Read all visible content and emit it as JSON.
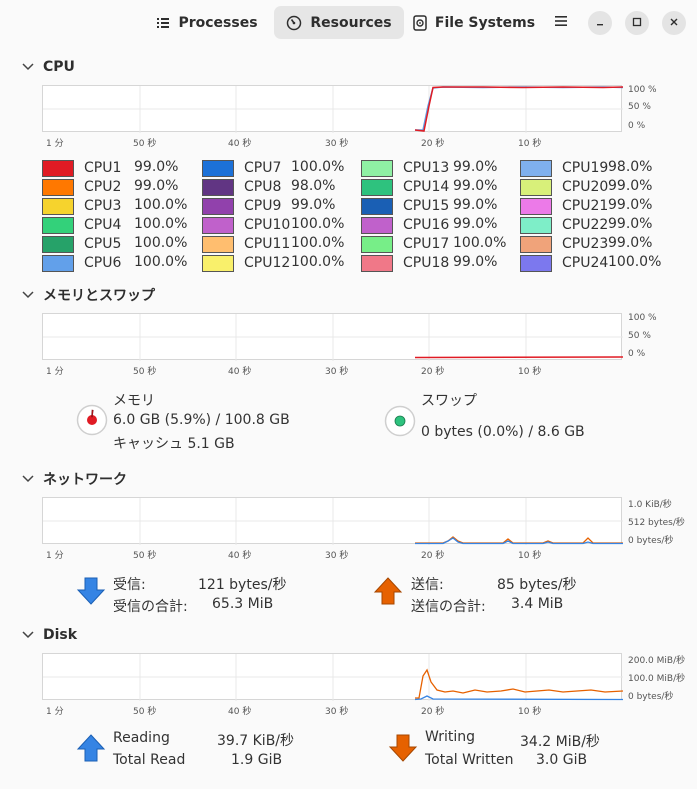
{
  "header": {
    "tabs": [
      {
        "label": "Processes",
        "icon": "list-icon"
      },
      {
        "label": "Resources",
        "icon": "gauge-icon"
      },
      {
        "label": "File Systems",
        "icon": "disk-icon"
      }
    ],
    "active_tab": "Resources"
  },
  "x_ticks": [
    "1 分",
    "50 秒",
    "40 秒",
    "30 秒",
    "20 秒",
    "10 秒"
  ],
  "cpu": {
    "title": "CPU",
    "y_ticks": [
      "100 %",
      "50 %",
      "0 %"
    ],
    "cores": [
      {
        "name": "CPU1",
        "value": "99.0%",
        "color": "#e01b24"
      },
      {
        "name": "CPU2",
        "value": "99.0%",
        "color": "#ff7800"
      },
      {
        "name": "CPU3",
        "value": "100.0%",
        "color": "#f6d32d"
      },
      {
        "name": "CPU4",
        "value": "100.0%",
        "color": "#33d17a"
      },
      {
        "name": "CPU5",
        "value": "100.0%",
        "color": "#26a269"
      },
      {
        "name": "CPU6",
        "value": "100.0%",
        "color": "#62a0ea"
      },
      {
        "name": "CPU7",
        "value": "100.0%",
        "color": "#1c71d8"
      },
      {
        "name": "CPU8",
        "value": "98.0%",
        "color": "#613583"
      },
      {
        "name": "CPU9",
        "value": "99.0%",
        "color": "#9141ac"
      },
      {
        "name": "CPU10",
        "value": "100.0%",
        "color": "#c061cb"
      },
      {
        "name": "CPU11",
        "value": "100.0%",
        "color": "#ffbe6f"
      },
      {
        "name": "CPU12",
        "value": "100.0%",
        "color": "#f9f06b"
      },
      {
        "name": "CPU13",
        "value": "99.0%",
        "color": "#8ff0a4"
      },
      {
        "name": "CPU14",
        "value": "99.0%",
        "color": "#2ec27e"
      },
      {
        "name": "CPU15",
        "value": "99.0%",
        "color": "#1a5fb4"
      },
      {
        "name": "CPU16",
        "value": "99.0%",
        "color": "#c061cb"
      },
      {
        "name": "CPU17",
        "value": "100.0%",
        "color": "#77ee88"
      },
      {
        "name": "CPU18",
        "value": "99.0%",
        "color": "#f07888"
      },
      {
        "name": "CPU19",
        "value": "98.0%",
        "color": "#7fb0ee"
      },
      {
        "name": "CPU20",
        "value": "99.0%",
        "color": "#d8f07a"
      },
      {
        "name": "CPU21",
        "value": "99.0%",
        "color": "#ec7ae8"
      },
      {
        "name": "CPU22",
        "value": "99.0%",
        "color": "#7eeec8"
      },
      {
        "name": "CPU23",
        "value": "99.0%",
        "color": "#f0a37a"
      },
      {
        "name": "CPU24",
        "value": "100.0%",
        "color": "#7c78ee"
      }
    ]
  },
  "memory": {
    "title": "メモリとスワップ",
    "y_ticks": [
      "100 %",
      "50 %",
      "0 %"
    ],
    "mem_label": "メモリ",
    "mem_value": "6.0 GB (5.9%) / 100.8 GB",
    "cache": "キャッシュ 5.1 GB",
    "swap_label": "スワップ",
    "swap_value": "0 bytes (0.0%) / 8.6 GB",
    "mem_color": "#e01b24",
    "swap_color": "#2ec27e"
  },
  "network": {
    "title": "ネットワーク",
    "y_ticks": [
      "1.0 KiB/秒",
      "512 bytes/秒",
      "0 bytes/秒"
    ],
    "recv_label": "受信:",
    "recv_value": "121 bytes/秒",
    "recv_total_label": "受信の合計:",
    "recv_total_value": "65.3 MiB",
    "send_label": "送信:",
    "send_value": "85 bytes/秒",
    "send_total_label": "送信の合計:",
    "send_total_value": "3.4 MiB",
    "recv_color": "#3584e4",
    "send_color": "#e66100"
  },
  "disk": {
    "title": "Disk",
    "y_ticks": [
      "200.0 MiB/秒",
      "100.0 MiB/秒",
      "0 bytes/秒"
    ],
    "read_label": "Reading",
    "read_value": "39.7 KiB/秒",
    "total_read_label": "Total Read",
    "total_read_value": "1.9 GiB",
    "write_label": "Writing",
    "write_value": "34.2 MiB/秒",
    "total_written_label": "Total Written",
    "total_written_value": "3.0 GiB",
    "read_color": "#3584e4",
    "write_color": "#e66100"
  }
}
